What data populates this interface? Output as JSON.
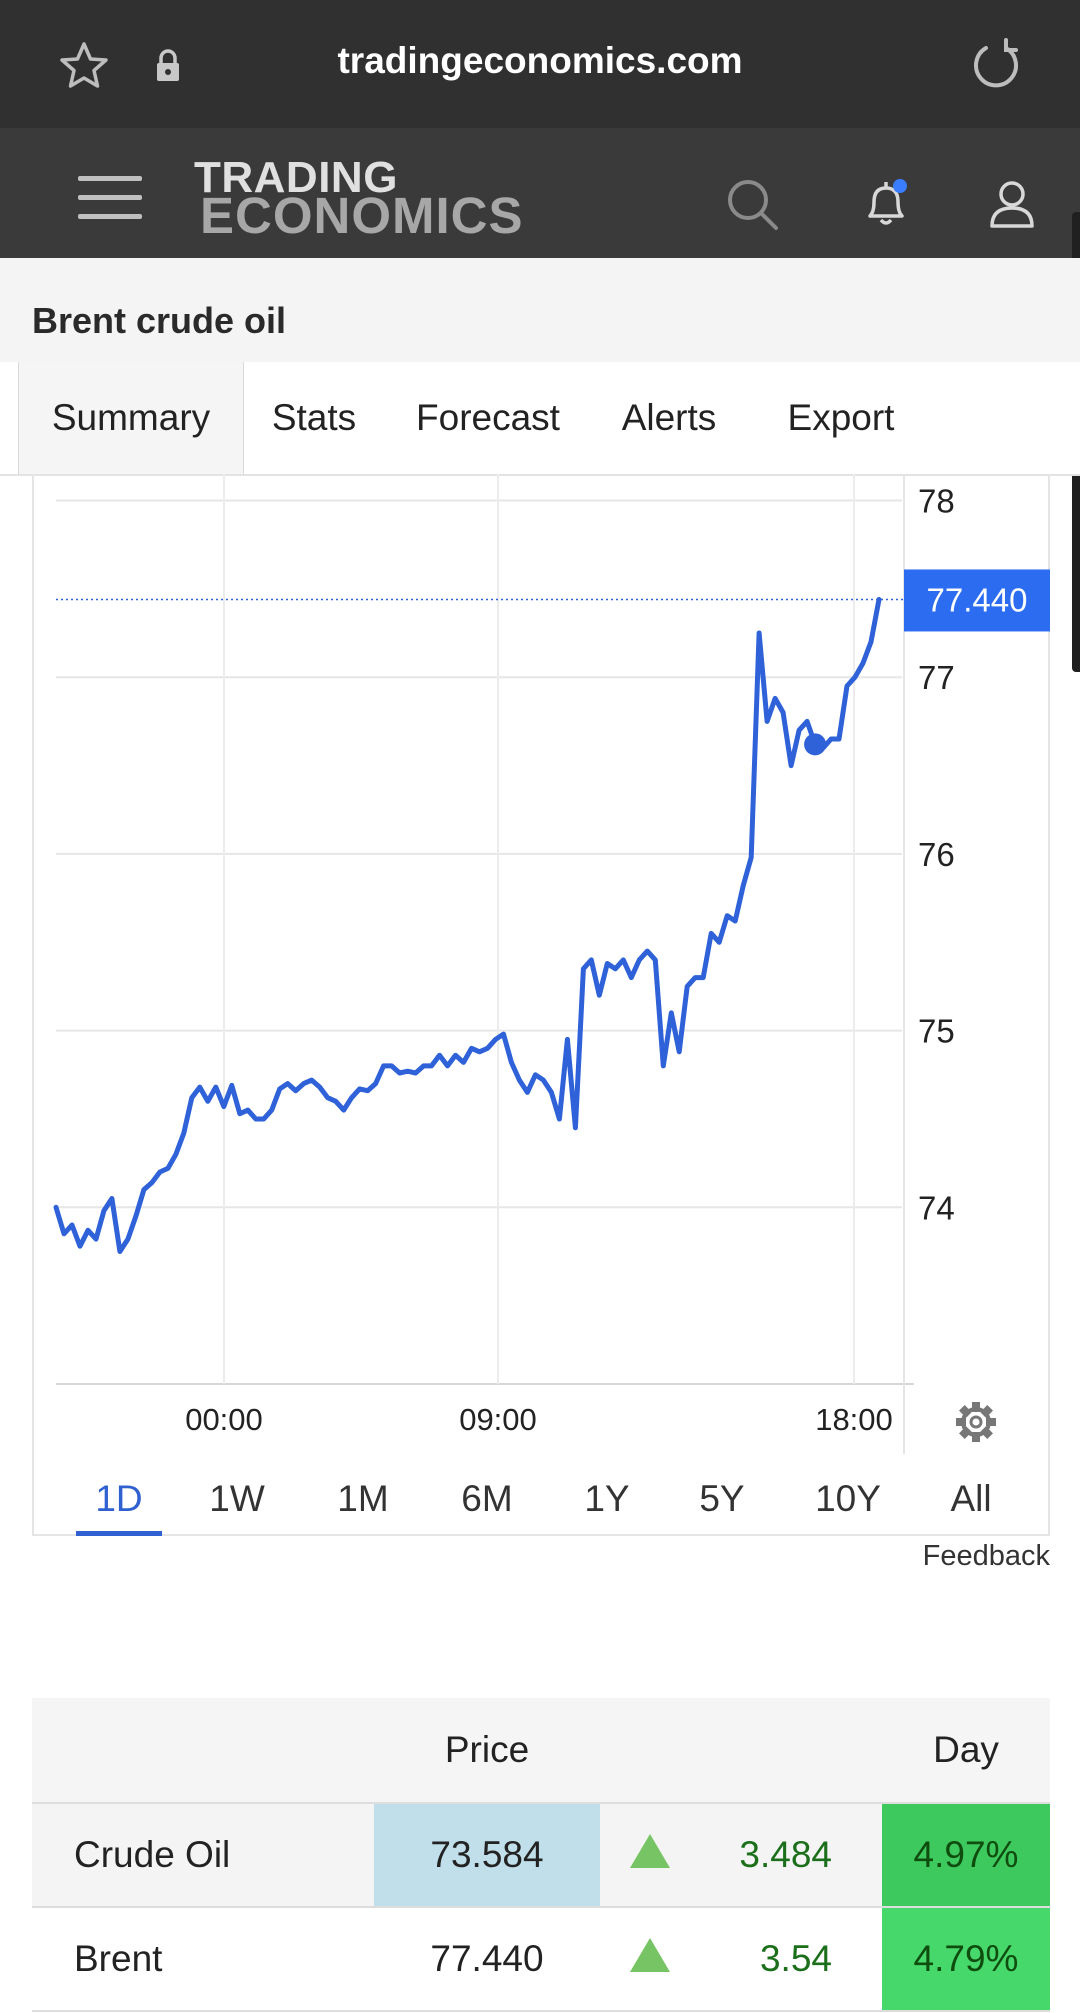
{
  "browser": {
    "url": "tradingeconomics.com",
    "icons": [
      "star-icon",
      "lock-icon",
      "reload-icon"
    ]
  },
  "header": {
    "logo_line1": "TRADING",
    "logo_line2": "ECONOMICS",
    "icons": [
      "menu-icon",
      "search-icon",
      "bell-icon",
      "user-icon"
    ]
  },
  "page": {
    "title": "Brent crude oil"
  },
  "tabs": [
    "Summary",
    "Stats",
    "Forecast",
    "Alerts",
    "Export"
  ],
  "active_tab": "Summary",
  "chart_data": {
    "type": "line",
    "x_ticks": [
      "00:00",
      "09:00",
      "18:00"
    ],
    "y_ticks": [
      "78",
      "77",
      "76",
      "75",
      "74"
    ],
    "ylim": [
      73,
      78.15
    ],
    "last_value_label": "77.440",
    "last_value": 77.44,
    "series": [
      {
        "color": "#2f62d8",
        "values": [
          74.0,
          73.85,
          73.9,
          73.78,
          73.87,
          73.82,
          73.98,
          74.05,
          73.75,
          73.82,
          73.95,
          74.1,
          74.14,
          74.2,
          74.22,
          74.3,
          74.42,
          74.62,
          74.68,
          74.6,
          74.68,
          74.57,
          74.69,
          74.53,
          74.55,
          74.5,
          74.5,
          74.55,
          74.67,
          74.7,
          74.66,
          74.7,
          74.72,
          74.68,
          74.62,
          74.6,
          74.55,
          74.62,
          74.67,
          74.66,
          74.7,
          74.8,
          74.8,
          74.76,
          74.77,
          74.76,
          74.8,
          74.8,
          74.86,
          74.8,
          74.86,
          74.82,
          74.9,
          74.88,
          74.9,
          74.95,
          74.98,
          74.82,
          74.72,
          74.65,
          74.75,
          74.72,
          74.65,
          74.5,
          74.95,
          74.45,
          75.35,
          75.4,
          75.2,
          75.38,
          75.35,
          75.4,
          75.3,
          75.4,
          75.45,
          75.4,
          74.8,
          75.1,
          74.88,
          75.25,
          75.3,
          75.3,
          75.55,
          75.5,
          75.65,
          75.62,
          75.82,
          75.98,
          77.25,
          76.75,
          76.88,
          76.8,
          76.5,
          76.7,
          76.75,
          76.62,
          76.6,
          76.65,
          76.65,
          76.95,
          77.0,
          77.08,
          77.2,
          77.44
        ]
      }
    ],
    "marker_value": 76.62,
    "gear_icon": "gear-icon"
  },
  "periods": [
    "1D",
    "1W",
    "1M",
    "6M",
    "1Y",
    "5Y",
    "10Y",
    "All"
  ],
  "active_period": "1D",
  "feedback_label": "Feedback",
  "quotes": {
    "headers": [
      "",
      "Price",
      "",
      "",
      "Day"
    ],
    "rows": [
      {
        "name": "Crude Oil",
        "price": "73.584",
        "change": "3.484",
        "percent": "4.97%",
        "direction": "up"
      },
      {
        "name": "Brent",
        "price": "77.440",
        "change": "3.54",
        "percent": "4.79%",
        "direction": "up"
      }
    ],
    "colors": {
      "highlight_price": "#c1dfea",
      "pct_bg_1": "#3ec95f",
      "pct_bg_2": "#47d86b",
      "up_arrow": "#76c463"
    }
  }
}
